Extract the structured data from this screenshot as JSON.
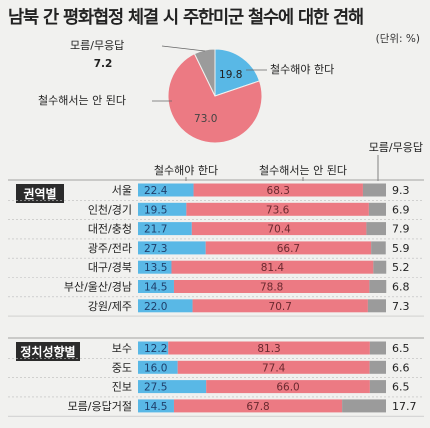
{
  "title": "남북 간 평화협정 체결 시 주한미군 철수에 대한 견해",
  "unit": "(단위: %)",
  "colors": {
    "withdraw": "#59b8e6",
    "not_withdraw": "#ec7a83",
    "unknown": "#9b9b9b"
  },
  "chart_data": [
    {
      "type": "pie",
      "title": "",
      "slices": [
        {
          "label": "철수해야 한다",
          "value": 19.8
        },
        {
          "label": "철수해서는 안 된다",
          "value": 73.0
        },
        {
          "label": "모름/무응답",
          "value": 7.2
        }
      ]
    },
    {
      "type": "bar",
      "stacked": true,
      "orientation": "horizontal",
      "legend": [
        "철수해야 한다",
        "철수해서는 안 된다",
        "모름/무응답"
      ],
      "groups": [
        {
          "name": "권역별",
          "categories": [
            "서울",
            "인천/경기",
            "대전/충청",
            "광주/전라",
            "대구/경북",
            "부산/울산/경남",
            "강원/제주"
          ],
          "series": [
            {
              "name": "철수해야 한다",
              "values": [
                22.4,
                19.5,
                21.7,
                27.3,
                13.5,
                14.5,
                22.0
              ]
            },
            {
              "name": "철수해서는 안 된다",
              "values": [
                68.3,
                73.6,
                70.4,
                66.7,
                81.4,
                78.8,
                70.7
              ]
            },
            {
              "name": "모름/무응답",
              "values": [
                9.3,
                6.9,
                7.9,
                5.9,
                5.2,
                6.8,
                7.3
              ]
            }
          ]
        },
        {
          "name": "정치성향별",
          "categories": [
            "보수",
            "중도",
            "진보",
            "모름/응답거절"
          ],
          "series": [
            {
              "name": "철수해야 한다",
              "values": [
                12.2,
                16.0,
                27.5,
                14.5
              ]
            },
            {
              "name": "철수해서는 안 된다",
              "values": [
                81.3,
                77.4,
                66.0,
                67.8
              ]
            },
            {
              "name": "모름/무응답",
              "values": [
                6.5,
                6.6,
                6.5,
                17.7
              ]
            }
          ]
        }
      ]
    }
  ]
}
